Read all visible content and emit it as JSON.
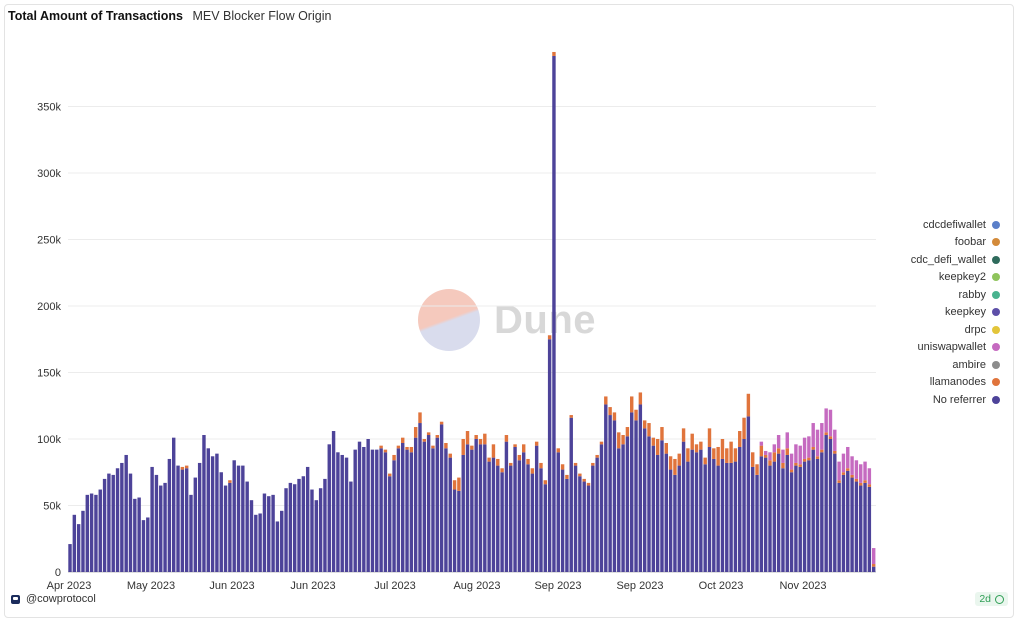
{
  "header": {
    "title": "Total Amount of Transactions",
    "subtitle": "MEV Blocker Flow Origin"
  },
  "watermark": {
    "text": "Dune"
  },
  "footer": {
    "author": "@cowprotocol",
    "badge": "2d"
  },
  "colors": {
    "No referrer": "#4d4399",
    "llamanodes": "#e0743c",
    "ambire": "#8c8c8c",
    "uniswapwallet": "#c56ac0",
    "drpc": "#e3c53a",
    "keepkey": "#5d4fa8",
    "rabby": "#49b38f",
    "keepkey2": "#8fc45c",
    "cdc_defi_wallet": "#2f6b5c",
    "foobar": "#d38a3a",
    "cdcdefiwallet": "#5b7fc9"
  },
  "legend": [
    "cdcdefiwallet",
    "foobar",
    "cdc_defi_wallet",
    "keepkey2",
    "rabby",
    "keepkey",
    "drpc",
    "uniswapwallet",
    "ambire",
    "llamanodes",
    "No referrer"
  ],
  "chart_data": {
    "type": "bar",
    "stacked": true,
    "title": "Total Amount of Transactions",
    "subtitle": "MEV Blocker Flow Origin",
    "x_axis": {
      "type": "date",
      "start": "2023-04-01",
      "end": "2023-11-30",
      "tick_labels": [
        "Apr 2023",
        "May 2023",
        "Jun 2023",
        "Jun 2023",
        "Jul 2023",
        "Aug 2023",
        "Sep 2023",
        "Sep 2023",
        "Oct 2023",
        "Nov 2023"
      ]
    },
    "y_axis": {
      "ylim": [
        0,
        400000
      ],
      "ticks": [
        0,
        50000,
        100000,
        150000,
        200000,
        250000,
        300000,
        350000
      ],
      "tick_labels": [
        "0",
        "50k",
        "100k",
        "150k",
        "200k",
        "250k",
        "300k",
        "350k"
      ]
    },
    "grid": true,
    "legend_position": "right",
    "series_order": [
      "No referrer",
      "llamanodes",
      "ambire",
      "uniswapwallet",
      "drpc",
      "keepkey",
      "rabby",
      "keepkey2",
      "cdc_defi_wallet",
      "foobar",
      "cdcdefiwallet"
    ],
    "no_referrer": [
      21000,
      43000,
      36000,
      46000,
      58000,
      59000,
      58000,
      62000,
      70000,
      74000,
      73000,
      78000,
      82000,
      88000,
      74000,
      55000,
      56000,
      39000,
      41000,
      79000,
      73000,
      65000,
      67000,
      85000,
      101000,
      80000,
      77000,
      78000,
      58000,
      71000,
      82000,
      103000,
      93000,
      87000,
      89000,
      75000,
      65000,
      67000,
      84000,
      80000,
      80000,
      68000,
      54000,
      43000,
      44000,
      59000,
      57000,
      58000,
      38000,
      46000,
      63000,
      67000,
      66000,
      70000,
      72000,
      79000,
      62000,
      54000,
      63000,
      70000,
      96000,
      106000,
      90000,
      88000,
      86000,
      68000,
      92000,
      98000,
      94000,
      100000,
      92000,
      92000,
      93000,
      90000,
      72000,
      84000,
      93000,
      97000,
      92000,
      90000,
      101000,
      112000,
      98000,
      103000,
      93000,
      101000,
      111000,
      93000,
      86000,
      62000,
      61000,
      88000,
      96000,
      92000,
      100000,
      96000,
      96000,
      83000,
      86000,
      80000,
      75000,
      98000,
      80000,
      94000,
      84000,
      90000,
      81000,
      74000,
      95000,
      78000,
      66000,
      175000,
      388000,
      90000,
      77000,
      70000,
      116000,
      80000,
      72000,
      68000,
      65000,
      80000,
      86000,
      96000,
      126000,
      118000,
      114000,
      93000,
      96000,
      102000,
      120000,
      114000,
      126000,
      108000,
      102000,
      95000,
      88000,
      99000,
      89000,
      77000,
      73000,
      80000,
      98000,
      83000,
      92000,
      90000,
      92000,
      81000,
      94000,
      85000,
      80000,
      85000,
      82000,
      82000,
      83000,
      94000,
      100000,
      117000,
      79000,
      73000,
      87000,
      86000,
      80000,
      83000,
      89000,
      78000,
      88000,
      75000,
      80000,
      79000,
      83000,
      84000,
      92000,
      85000,
      90000,
      103000,
      100000,
      89000,
      67000,
      73000,
      76000,
      71000,
      68000,
      65000,
      67000,
      64000,
      4000
    ],
    "llamanodes": [
      0,
      0,
      0,
      0,
      0,
      0,
      0,
      0,
      0,
      0,
      0,
      0,
      0,
      0,
      0,
      0,
      0,
      0,
      0,
      0,
      0,
      0,
      0,
      0,
      0,
      0,
      2000,
      2000,
      0,
      0,
      0,
      0,
      0,
      0,
      0,
      0,
      0,
      2000,
      0,
      0,
      0,
      0,
      0,
      0,
      0,
      0,
      0,
      0,
      0,
      0,
      0,
      0,
      0,
      0,
      0,
      0,
      0,
      0,
      0,
      0,
      0,
      0,
      0,
      0,
      0,
      0,
      0,
      0,
      0,
      0,
      0,
      0,
      2000,
      2000,
      2000,
      4000,
      2000,
      4000,
      2000,
      4000,
      8000,
      8000,
      2000,
      2000,
      2000,
      2000,
      2000,
      4000,
      3000,
      7000,
      10000,
      12000,
      10000,
      3000,
      3000,
      4000,
      8000,
      3000,
      10000,
      5000,
      3000,
      5000,
      2000,
      2000,
      4000,
      6000,
      4000,
      4000,
      3000,
      4000,
      3000,
      3000,
      3000,
      3000,
      4000,
      3000,
      2000,
      2000,
      2000,
      2000,
      2000,
      2000,
      2000,
      2000,
      6000,
      6000,
      6000,
      12000,
      7000,
      7000,
      12000,
      8000,
      9000,
      6000,
      10000,
      6000,
      12000,
      10000,
      8000,
      10000,
      12000,
      9000,
      10000,
      10000,
      12000,
      6000,
      6000,
      5000,
      14000,
      8000,
      14000,
      15000,
      11000,
      16000,
      10000,
      12000,
      16000,
      17000,
      11000,
      8000,
      8000,
      2000,
      4000,
      7000,
      4000,
      4000,
      5000,
      2000,
      2000,
      2000,
      2000,
      2000,
      2000,
      2000,
      2000,
      2000,
      2000,
      2000,
      2000,
      2000,
      2000,
      2000,
      2000,
      2000,
      2000,
      2000,
      2000,
      2000,
      2000,
      2000
    ],
    "uniswapwallet": [
      0,
      0,
      0,
      0,
      0,
      0,
      0,
      0,
      0,
      0,
      0,
      0,
      0,
      0,
      0,
      0,
      0,
      0,
      0,
      0,
      0,
      0,
      0,
      0,
      0,
      0,
      0,
      0,
      0,
      0,
      0,
      0,
      0,
      0,
      0,
      0,
      0,
      0,
      0,
      0,
      0,
      0,
      0,
      0,
      0,
      0,
      0,
      0,
      0,
      0,
      0,
      0,
      0,
      0,
      0,
      0,
      0,
      0,
      0,
      0,
      0,
      0,
      0,
      0,
      0,
      0,
      0,
      0,
      0,
      0,
      0,
      0,
      0,
      0,
      0,
      0,
      0,
      0,
      0,
      0,
      0,
      0,
      0,
      0,
      0,
      0,
      0,
      0,
      0,
      0,
      0,
      0,
      0,
      0,
      0,
      0,
      0,
      0,
      0,
      0,
      0,
      0,
      0,
      0,
      0,
      0,
      0,
      0,
      0,
      0,
      0,
      0,
      0,
      0,
      0,
      0,
      0,
      0,
      0,
      0,
      0,
      0,
      0,
      0,
      0,
      0,
      0,
      0,
      0,
      0,
      0,
      0,
      0,
      0,
      0,
      0,
      0,
      0,
      0,
      0,
      0,
      0,
      0,
      0,
      0,
      0,
      0,
      0,
      0,
      0,
      0,
      0,
      0,
      0,
      0,
      0,
      0,
      0,
      0,
      0,
      3000,
      3000,
      6000,
      6000,
      10000,
      10000,
      12000,
      12000,
      14000,
      14000,
      16000,
      16000,
      18000,
      20000,
      20000,
      18000,
      20000,
      16000,
      14000,
      14000,
      16000,
      14000,
      14000,
      14000,
      14000,
      12000,
      12000,
      0
    ]
  }
}
